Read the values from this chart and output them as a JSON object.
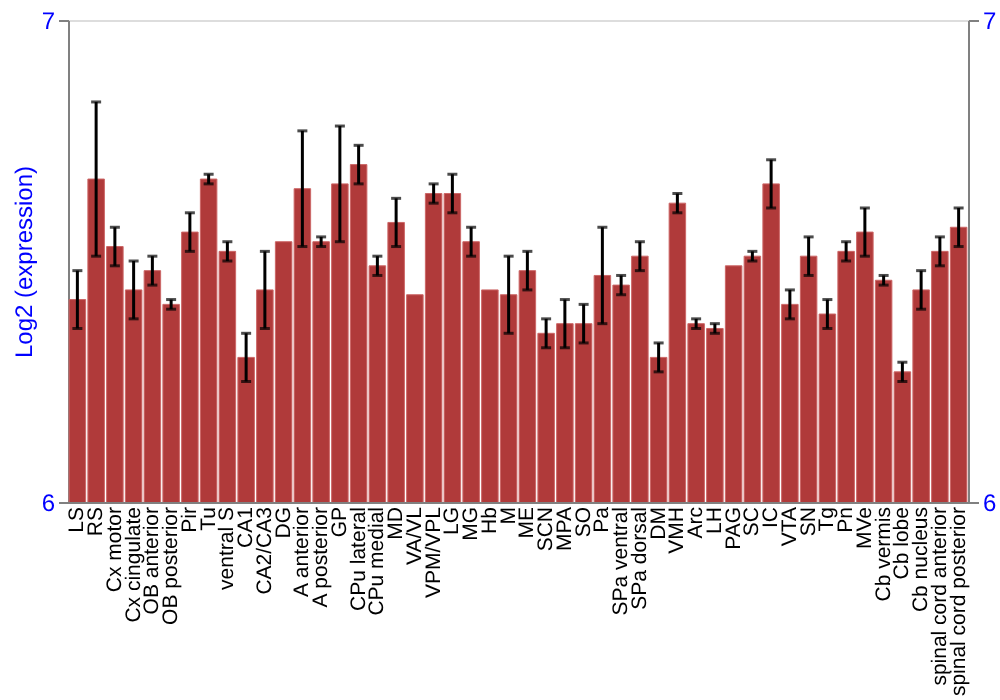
{
  "chart_data": {
    "type": "bar",
    "ylabel": "Log2 (expression)",
    "categories": [
      "LS",
      "RS",
      "Cx motor",
      "Cx cingulate",
      "OB anterior",
      "OB posterior",
      "Pir",
      "Tu",
      "ventral S",
      "CA1",
      "CA2/CA3",
      "DG",
      "A anterior",
      "A posterior",
      "GP",
      "CPu lateral",
      "CPu medial",
      "MD",
      "VA/VL",
      "VPM/VPL",
      "LG",
      "MG",
      "Hb",
      "M",
      "ME",
      "SCN",
      "MPA",
      "SO",
      "Pa",
      "SPa ventral",
      "SPa dorsal",
      "DM",
      "VMH",
      "Arc",
      "LH",
      "PAG",
      "SC",
      "IC",
      "VTA",
      "SN",
      "Tg",
      "Pn",
      "MVe",
      "Cb vermis",
      "Cb lobe",
      "Cb nucleus",
      "spinal cord anterior",
      "spinal cord posterior"
    ],
    "values": [
      6.42,
      6.67,
      6.53,
      6.44,
      6.48,
      6.41,
      6.56,
      6.67,
      6.52,
      6.3,
      6.44,
      6.54,
      6.65,
      6.54,
      6.66,
      6.7,
      6.49,
      6.58,
      6.43,
      6.64,
      6.64,
      6.54,
      6.44,
      6.43,
      6.48,
      6.35,
      6.37,
      6.37,
      6.47,
      6.45,
      6.51,
      6.3,
      6.62,
      6.37,
      6.36,
      6.49,
      6.51,
      6.66,
      6.41,
      6.51,
      6.39,
      6.52,
      6.56,
      6.46,
      6.27,
      6.44,
      6.52,
      6.57
    ],
    "errors": [
      0.06,
      0.16,
      0.04,
      0.06,
      0.03,
      0.01,
      0.04,
      0.01,
      0.02,
      0.05,
      0.08,
      null,
      0.12,
      0.01,
      0.12,
      0.04,
      0.02,
      0.05,
      null,
      0.02,
      0.04,
      0.03,
      null,
      0.08,
      0.04,
      0.03,
      0.05,
      0.04,
      0.1,
      0.02,
      0.03,
      0.03,
      0.02,
      0.01,
      0.01,
      null,
      0.01,
      0.05,
      0.03,
      0.04,
      0.03,
      0.02,
      0.05,
      0.01,
      0.02,
      0.04,
      0.03,
      0.04
    ],
    "color": "#b03a3a",
    "ylim": [
      6,
      7
    ],
    "yticks": [
      6,
      7
    ],
    "y2lim": [
      6,
      7
    ],
    "y2ticks": [
      6,
      7
    ],
    "grid": false
  }
}
